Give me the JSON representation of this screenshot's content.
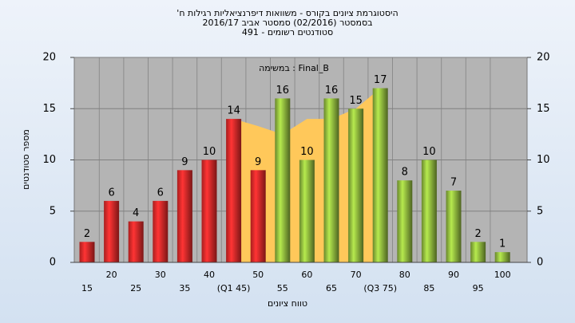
{
  "chart_data": {
    "type": "bar",
    "title": "'היסטוגרמת ציונים בקורס - משוואות דיפרנציאליות רגילות ח",
    "subtitle": "בסמסטר  (02/2016)  סמסטר אביב 2016/17",
    "subtitle2": "סטודנטים רשומים - 491",
    "annotation": "במשימה : Final_B",
    "x_label": "טווח ציונים",
    "y_label": "מספר סטודנטים",
    "categories": [
      "15",
      "20",
      "25",
      "30",
      "35",
      "40",
      "(Q1 45)",
      "50",
      "55",
      "60",
      "65",
      "70",
      "(Q3 75)",
      "80",
      "85",
      "90",
      "95",
      "100"
    ],
    "values": [
      2,
      6,
      4,
      6,
      9,
      10,
      14,
      9,
      16,
      10,
      16,
      15,
      17,
      8,
      10,
      7,
      2,
      1
    ],
    "colors": [
      "#e02828",
      "#e02828",
      "#e02828",
      "#e02828",
      "#e02828",
      "#e02828",
      "#e02828",
      "#e02828",
      "#8cb43c",
      "#8cb43c",
      "#8cb43c",
      "#8cb43c",
      "#8cb43c",
      "#8cb43c",
      "#8cb43c",
      "#8cb43c",
      "#8cb43c",
      "#8cb43c"
    ],
    "band_area": {
      "color": "#ffc85a",
      "values": [
        null,
        null,
        null,
        null,
        null,
        null,
        14,
        13.3,
        12.5,
        14,
        14,
        15,
        17,
        null,
        null,
        null,
        null,
        null
      ]
    },
    "ylim": [
      0,
      20
    ],
    "yticks": [
      0,
      5,
      10,
      15,
      20
    ],
    "grid": true
  }
}
